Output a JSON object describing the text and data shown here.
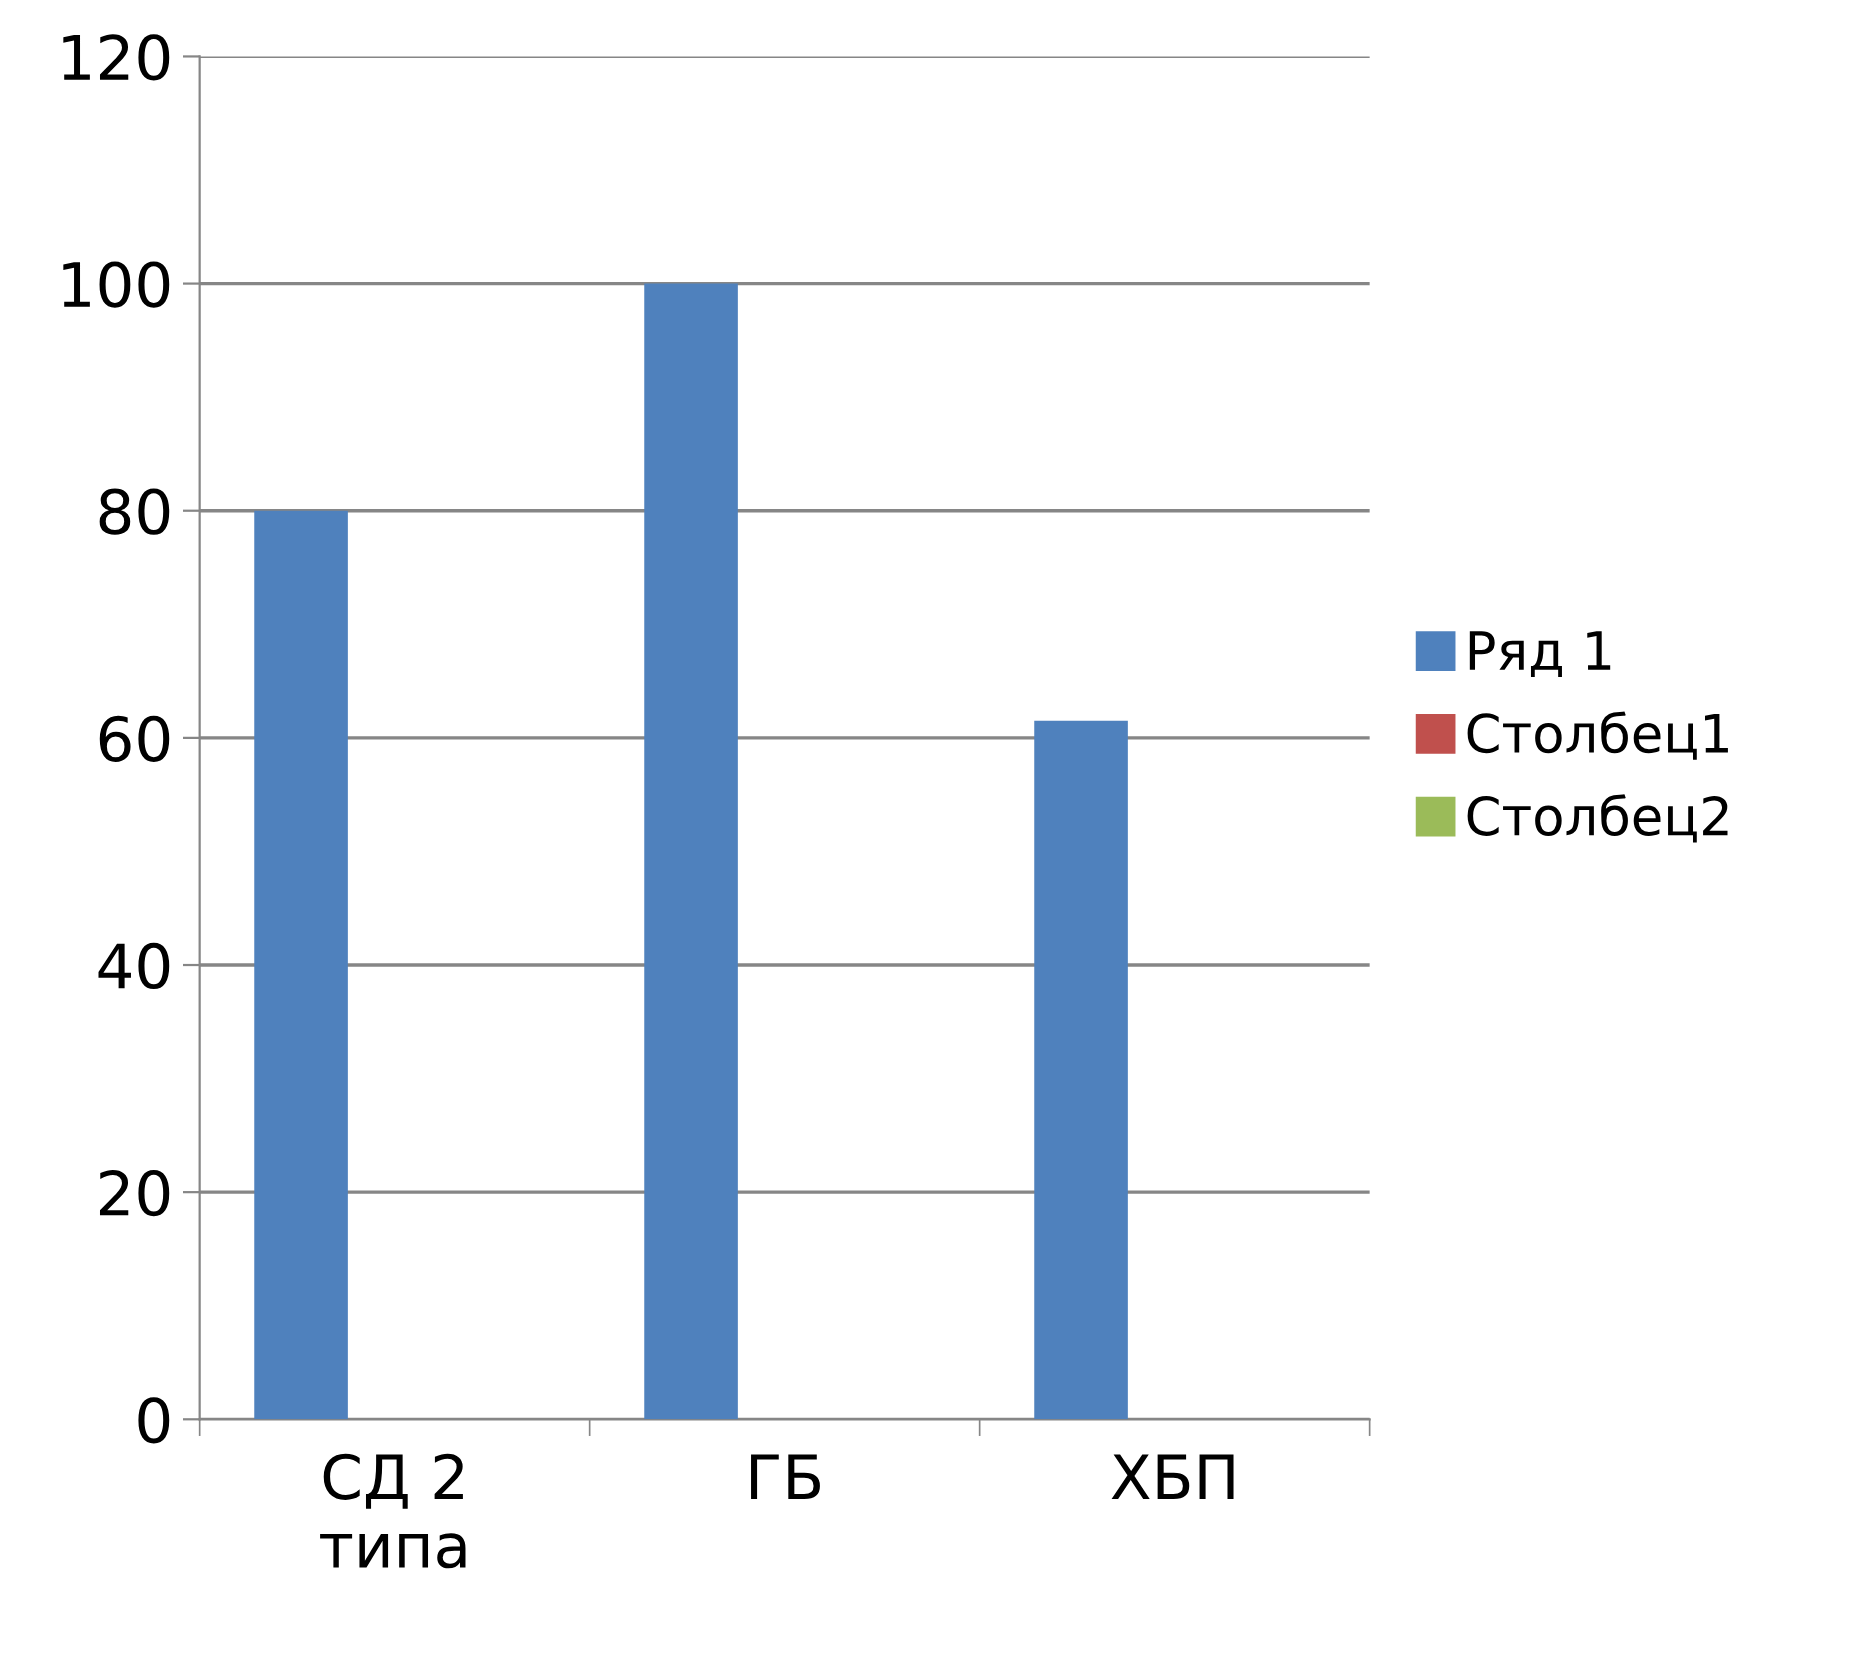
{
  "chart_data": {
    "type": "bar",
    "categories": [
      "СД 2\nтипа",
      "ГБ",
      "ХБП"
    ],
    "series": [
      {
        "name": "Ряд 1",
        "color": "#4f81bd",
        "values": [
          80,
          100,
          61.5
        ]
      },
      {
        "name": "Столбец1",
        "color": "#c0504d",
        "values": [
          null,
          null,
          null
        ]
      },
      {
        "name": "Столбец2",
        "color": "#9bbb59",
        "values": [
          null,
          null,
          null
        ]
      }
    ],
    "ylim": [
      0,
      120
    ],
    "yticks": [
      0,
      20,
      40,
      60,
      80,
      100,
      120
    ],
    "grid": "y",
    "legend": "right"
  }
}
